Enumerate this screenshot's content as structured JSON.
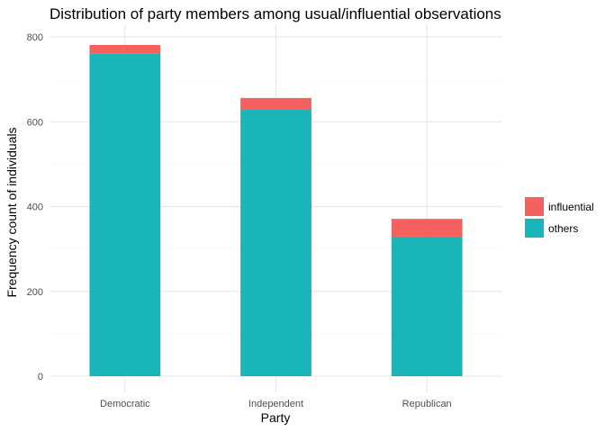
{
  "chart_data": {
    "type": "bar",
    "stacked": true,
    "title": "Distribution of party members among usual/influential observations",
    "xlabel": "Party",
    "ylabel": "Frequency count of individuals",
    "categories": [
      "Democratic",
      "Independent",
      "Republican"
    ],
    "series": [
      {
        "name": "others",
        "color": "#19b5b9",
        "values": [
          760,
          628,
          329
        ]
      },
      {
        "name": "influential",
        "color": "#f4615f",
        "values": [
          21,
          28,
          42
        ]
      }
    ],
    "legend_order": [
      "influential",
      "others"
    ],
    "yticks": [
      0,
      200,
      400,
      600,
      800
    ],
    "ylim": [
      0,
      828
    ],
    "grid": true,
    "legend_position": "right"
  }
}
